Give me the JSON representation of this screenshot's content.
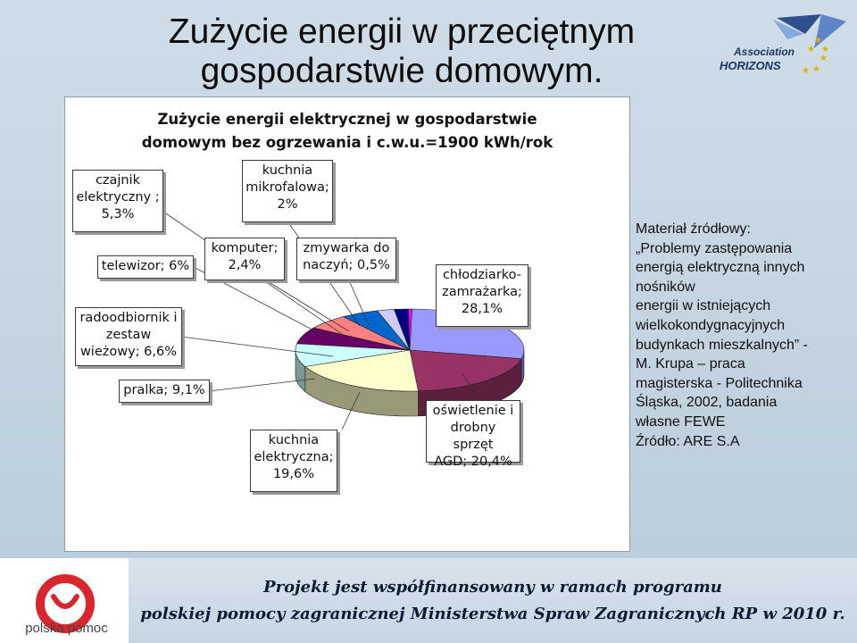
{
  "slide": {
    "title_line1": "Zużycie energii w przeciętnym",
    "title_line2": "gospodarstwie domowym."
  },
  "logo": {
    "line1": "Association",
    "line2": "HORIZONS"
  },
  "chart_data": {
    "type": "pie",
    "title_line1": "Zużycie energii elektrycznej w gospodarstwie",
    "title_line2": "domowym bez ogrzewania i c.w.u.=1900 kWh/rok",
    "categories": [
      "chłodziarko-zamrażarka",
      "oświetlenie i drobny sprzęt AGD",
      "kuchnia elektryczna",
      "pralka",
      "radoodbiornik i zestaw wieżowy",
      "telewizor",
      "czajnik elektryczny",
      "komputer",
      "kuchnia mikrofalowa",
      "zmywarka do naczyń"
    ],
    "values": [
      28.1,
      20.4,
      19.6,
      9.1,
      6.6,
      6.0,
      5.3,
      2.4,
      2.0,
      0.5
    ],
    "unit": "%",
    "colors": [
      "#9999ff",
      "#993366",
      "#ffffcc",
      "#ccffff",
      "#660066",
      "#ff8080",
      "#0066cc",
      "#ccccff",
      "#000080",
      "#ff00ff"
    ],
    "labels": [
      "chłodziarko-\nzamrażarka;\n28,1%",
      "oświetlenie i\ndrobny sprzęt\nAGD; 20,4%",
      "kuchnia\nelektryczna;\n19,6%",
      "pralka; 9,1%",
      "radoodbiornik i\nzestaw\nwieżowy; 6,6%",
      "telewizor; 6%",
      "czajnik\nelektryczny ;\n5,3%",
      "komputer;\n2,4%",
      "kuchnia\nmikrofalowa;\n2%",
      "zmywarka do\nnaczyń; 0,5%"
    ]
  },
  "source": {
    "lines": [
      "Materiał źródłowy:",
      "„Problemy zastępowania",
      "energią elektryczną innych",
      "nośników",
      "energii  w istniejących",
      "wielkokondygnacyjnych",
      "budynkach mieszkalnych”  -",
      "M. Krupa – praca",
      "magisterska - Politechnika",
      "Śląska, 2002, badania",
      "własne FEWE",
      "Źródło: ARE S.A"
    ]
  },
  "footer": {
    "logo_text": "polska pomoc",
    "line1": "Projekt jest współfinansowany w ramach programu",
    "line2": "polskiej pomocy zagranicznej Ministerstwa Spraw Zagranicznych RP w 2010 r."
  }
}
